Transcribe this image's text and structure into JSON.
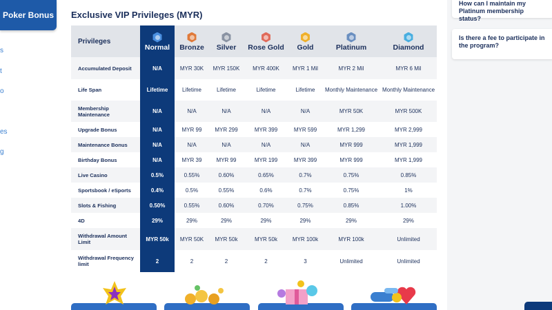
{
  "sidebar": {
    "poker_button": "Poker Bonus",
    "fragments": [
      "s",
      "t",
      "o",
      "es",
      "g"
    ]
  },
  "main": {
    "title": "Exclusive VIP Privileges (MYR)"
  },
  "table": {
    "header_label": "Privileges",
    "tiers": [
      {
        "name": "Normal",
        "color": "#4a8fe0"
      },
      {
        "name": "Bronze",
        "color": "#e07a3a"
      },
      {
        "name": "Silver",
        "color": "#8a93a3"
      },
      {
        "name": "Rose Gold",
        "color": "#e06a5a"
      },
      {
        "name": "Gold",
        "color": "#f0b02a"
      },
      {
        "name": "Platinum",
        "color": "#6a8fc0"
      },
      {
        "name": "Diamond",
        "color": "#48aee0"
      }
    ],
    "rows": [
      {
        "label": "Accumulated Deposit",
        "values": [
          "N/A",
          "MYR 30K",
          "MYR 150K",
          "MYR 400K",
          "MYR 1 Mil",
          "MYR 2 Mil",
          "MYR 6 Mil"
        ]
      },
      {
        "label": "Life Span",
        "values": [
          "Lifetime",
          "Lifetime",
          "Lifetime",
          "Lifetime",
          "Lifetime",
          "Monthly Maintenance",
          "Monthly Maintenance"
        ]
      },
      {
        "label": "Membership Maintenance",
        "values": [
          "N/A",
          "N/A",
          "N/A",
          "N/A",
          "N/A",
          "MYR 50K",
          "MYR 500K"
        ]
      },
      {
        "label": "Upgrade Bonus",
        "values": [
          "N/A",
          "MYR 99",
          "MYR 299",
          "MYR 399",
          "MYR 599",
          "MYR 1,299",
          "MYR 2,999"
        ]
      },
      {
        "label": "Maintenance Bonus",
        "values": [
          "N/A",
          "N/A",
          "N/A",
          "N/A",
          "N/A",
          "MYR 999",
          "MYR 1,999"
        ]
      },
      {
        "label": "Birthday Bonus",
        "values": [
          "N/A",
          "MYR 39",
          "MYR 99",
          "MYR 199",
          "MYR 399",
          "MYR 999",
          "MYR 1,999"
        ]
      },
      {
        "label": "Live Casino",
        "values": [
          "0.5%",
          "0.55%",
          "0.60%",
          "0.65%",
          "0.7%",
          "0.75%",
          "0.85%"
        ]
      },
      {
        "label": "Sportsbook / eSports",
        "values": [
          "0.4%",
          "0.5%",
          "0.55%",
          "0.6%",
          "0.7%",
          "0.75%",
          "1%"
        ]
      },
      {
        "label": "Slots & Fishing",
        "values": [
          "0.50%",
          "0.55%",
          "0.60%",
          "0.70%",
          "0.75%",
          "0.85%",
          "1.00%"
        ]
      },
      {
        "label": "4D",
        "values": [
          "29%",
          "29%",
          "29%",
          "29%",
          "29%",
          "29%",
          "29%"
        ]
      },
      {
        "label": "Withdrawal Amount Limit",
        "values": [
          "MYR 50k",
          "MYR 50K",
          "MYR 50k",
          "MYR 50k",
          "MYR 100k",
          "MYR 100k",
          "Unlimited"
        ]
      },
      {
        "label": "Withdrawal Frequency limit",
        "values": [
          "2",
          "2",
          "2",
          "2",
          "3",
          "Unlimited",
          "Unlimited"
        ]
      }
    ]
  },
  "faq": [
    {
      "question": "How can I maintain my Platinum membership status?"
    },
    {
      "question": "Is there a fee to participate in the program?"
    }
  ],
  "promo_cards": [
    {
      "icon": "crown-icon"
    },
    {
      "icon": "coins-icon"
    },
    {
      "icon": "gift-icon"
    },
    {
      "icon": "hearts-icon"
    }
  ],
  "colors": {
    "primary_blue": "#1e5aa8",
    "normal_column": "#0d3a7a",
    "text_navy": "#1b2f5b"
  }
}
